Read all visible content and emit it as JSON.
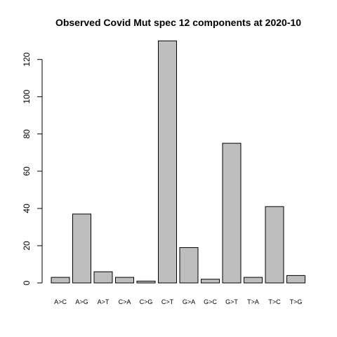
{
  "chart_data": {
    "type": "bar",
    "title": "Observed Covid Mut spec 12 components at 2020-10",
    "xlabel": "",
    "ylabel": "",
    "categories": [
      "A>C",
      "A>G",
      "A>T",
      "C>A",
      "C>G",
      "C>T",
      "G>A",
      "G>C",
      "G>T",
      "T>A",
      "T>C",
      "T>G"
    ],
    "values": [
      3,
      37,
      6,
      3,
      1,
      130,
      19,
      2,
      75,
      3,
      41,
      4
    ],
    "ylim": [
      0,
      130
    ],
    "yticks": [
      0,
      20,
      40,
      60,
      80,
      100,
      120
    ],
    "bar_color": "#bebebe",
    "grid": false,
    "legend": "none"
  }
}
